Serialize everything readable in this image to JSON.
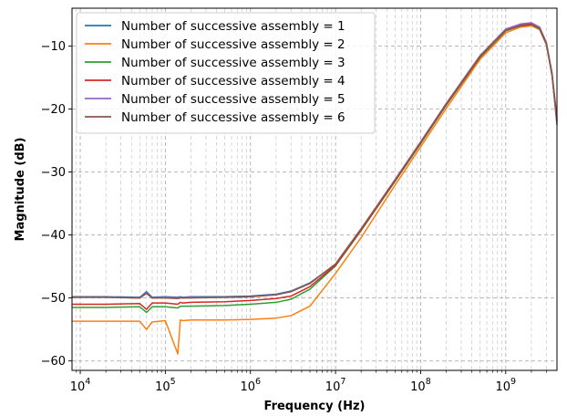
{
  "chart_data": {
    "type": "line",
    "xlabel": "Frequency (Hz)",
    "ylabel": "Magnitude (dB)",
    "x_scale": "log",
    "xlim": [
      8000,
      4000000000
    ],
    "ylim": [
      -61.5,
      -4
    ],
    "grid": true,
    "legend_position": "top-left",
    "x_ticks": [
      {
        "value": 10000,
        "base": "10",
        "exp": "4"
      },
      {
        "value": 100000,
        "base": "10",
        "exp": "5"
      },
      {
        "value": 1000000,
        "base": "10",
        "exp": "6"
      },
      {
        "value": 10000000,
        "base": "10",
        "exp": "7"
      },
      {
        "value": 100000000,
        "base": "10",
        "exp": "8"
      },
      {
        "value": 1000000000,
        "base": "10",
        "exp": "9"
      }
    ],
    "y_ticks": [
      {
        "value": -60,
        "label": "−60"
      },
      {
        "value": -50,
        "label": "−50"
      },
      {
        "value": -40,
        "label": "−40"
      },
      {
        "value": -30,
        "label": "−30"
      },
      {
        "value": -20,
        "label": "−20"
      },
      {
        "value": -10,
        "label": "−10"
      }
    ],
    "x": [
      8000,
      20000,
      50000,
      60000,
      70000,
      100000,
      140000,
      150000,
      160000,
      200000,
      500000,
      1000000,
      2000000,
      3000000,
      5000000,
      10000000,
      20000000,
      50000000,
      100000000,
      200000000,
      500000000,
      1000000000,
      1500000000,
      2000000000,
      2500000000,
      3000000000,
      3500000000,
      4000000000
    ],
    "series": [
      {
        "name": "Number of successive assembly = 1",
        "color": "#1f77b4",
        "y": [
          -49.8,
          -49.8,
          -49.9,
          -49.0,
          -49.9,
          -49.8,
          -49.9,
          -49.8,
          -49.9,
          -49.8,
          -49.8,
          -49.7,
          -49.4,
          -48.9,
          -47.6,
          -44.7,
          -39.1,
          -31.3,
          -25.3,
          -19.2,
          -11.6,
          -7.4,
          -6.6,
          -6.4,
          -7.1,
          -9.5,
          -14.5,
          -22.5
        ]
      },
      {
        "name": "Number of successive assembly = 2",
        "color": "#ff7f0e",
        "y": [
          -53.7,
          -53.7,
          -53.7,
          -55.0,
          -53.8,
          -53.6,
          -58.9,
          -53.5,
          -53.6,
          -53.5,
          -53.5,
          -53.4,
          -53.2,
          -52.8,
          -51.3,
          -46.1,
          -40.4,
          -32.1,
          -26.0,
          -19.9,
          -12.1,
          -7.9,
          -7.0,
          -6.8,
          -7.4,
          -9.8,
          -14.6,
          -21.8
        ]
      },
      {
        "name": "Number of successive assembly = 3",
        "color": "#2ca02c",
        "y": [
          -51.5,
          -51.5,
          -51.4,
          -52.3,
          -51.4,
          -51.4,
          -51.6,
          -51.3,
          -51.3,
          -51.3,
          -51.2,
          -51.0,
          -50.7,
          -50.2,
          -48.6,
          -44.9,
          -39.3,
          -31.5,
          -25.5,
          -19.4,
          -11.8,
          -7.6,
          -6.8,
          -6.6,
          -7.3,
          -9.7,
          -14.7,
          -22.2
        ]
      },
      {
        "name": "Number of successive assembly = 4",
        "color": "#d62728",
        "y": [
          -51.0,
          -51.0,
          -50.9,
          -51.8,
          -50.8,
          -50.8,
          -51.0,
          -50.7,
          -50.8,
          -50.7,
          -50.6,
          -50.4,
          -50.1,
          -49.7,
          -48.2,
          -44.8,
          -39.2,
          -31.4,
          -25.4,
          -19.3,
          -11.7,
          -7.5,
          -6.7,
          -6.5,
          -7.2,
          -9.6,
          -14.6,
          -22.0
        ]
      },
      {
        "name": "Number of successive assembly = 5",
        "color": "#9467bd",
        "y": [
          -49.9,
          -49.9,
          -50.0,
          -49.2,
          -50.0,
          -49.9,
          -50.0,
          -49.9,
          -50.0,
          -49.9,
          -49.9,
          -49.8,
          -49.5,
          -49.0,
          -47.7,
          -44.6,
          -39.0,
          -31.2,
          -25.2,
          -19.1,
          -11.5,
          -7.3,
          -6.5,
          -6.3,
          -7.0,
          -9.4,
          -14.3,
          -21.6
        ]
      },
      {
        "name": "Number of successive assembly = 6",
        "color": "#8c564b",
        "y": [
          -49.9,
          -49.9,
          -50.0,
          -49.3,
          -50.0,
          -50.0,
          -50.1,
          -50.0,
          -50.0,
          -50.0,
          -49.9,
          -49.8,
          -49.5,
          -49.0,
          -47.7,
          -44.6,
          -39.0,
          -31.3,
          -25.3,
          -19.2,
          -11.6,
          -7.5,
          -6.8,
          -6.6,
          -7.2,
          -9.6,
          -14.4,
          -21.4
        ]
      }
    ]
  }
}
